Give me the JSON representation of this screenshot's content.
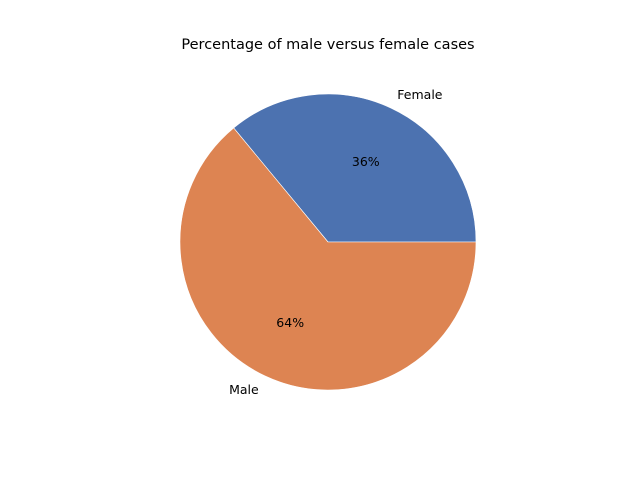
{
  "chart_data": {
    "type": "pie",
    "title": "Percentage of male versus female cases",
    "labels": [
      "Female",
      "Male"
    ],
    "values": [
      36,
      64
    ],
    "percent_labels": [
      "36%",
      "64%"
    ],
    "colors": [
      "#4c72b0",
      "#dd8452"
    ],
    "start_angle_deg": 0,
    "direction": "counterclockwise"
  }
}
